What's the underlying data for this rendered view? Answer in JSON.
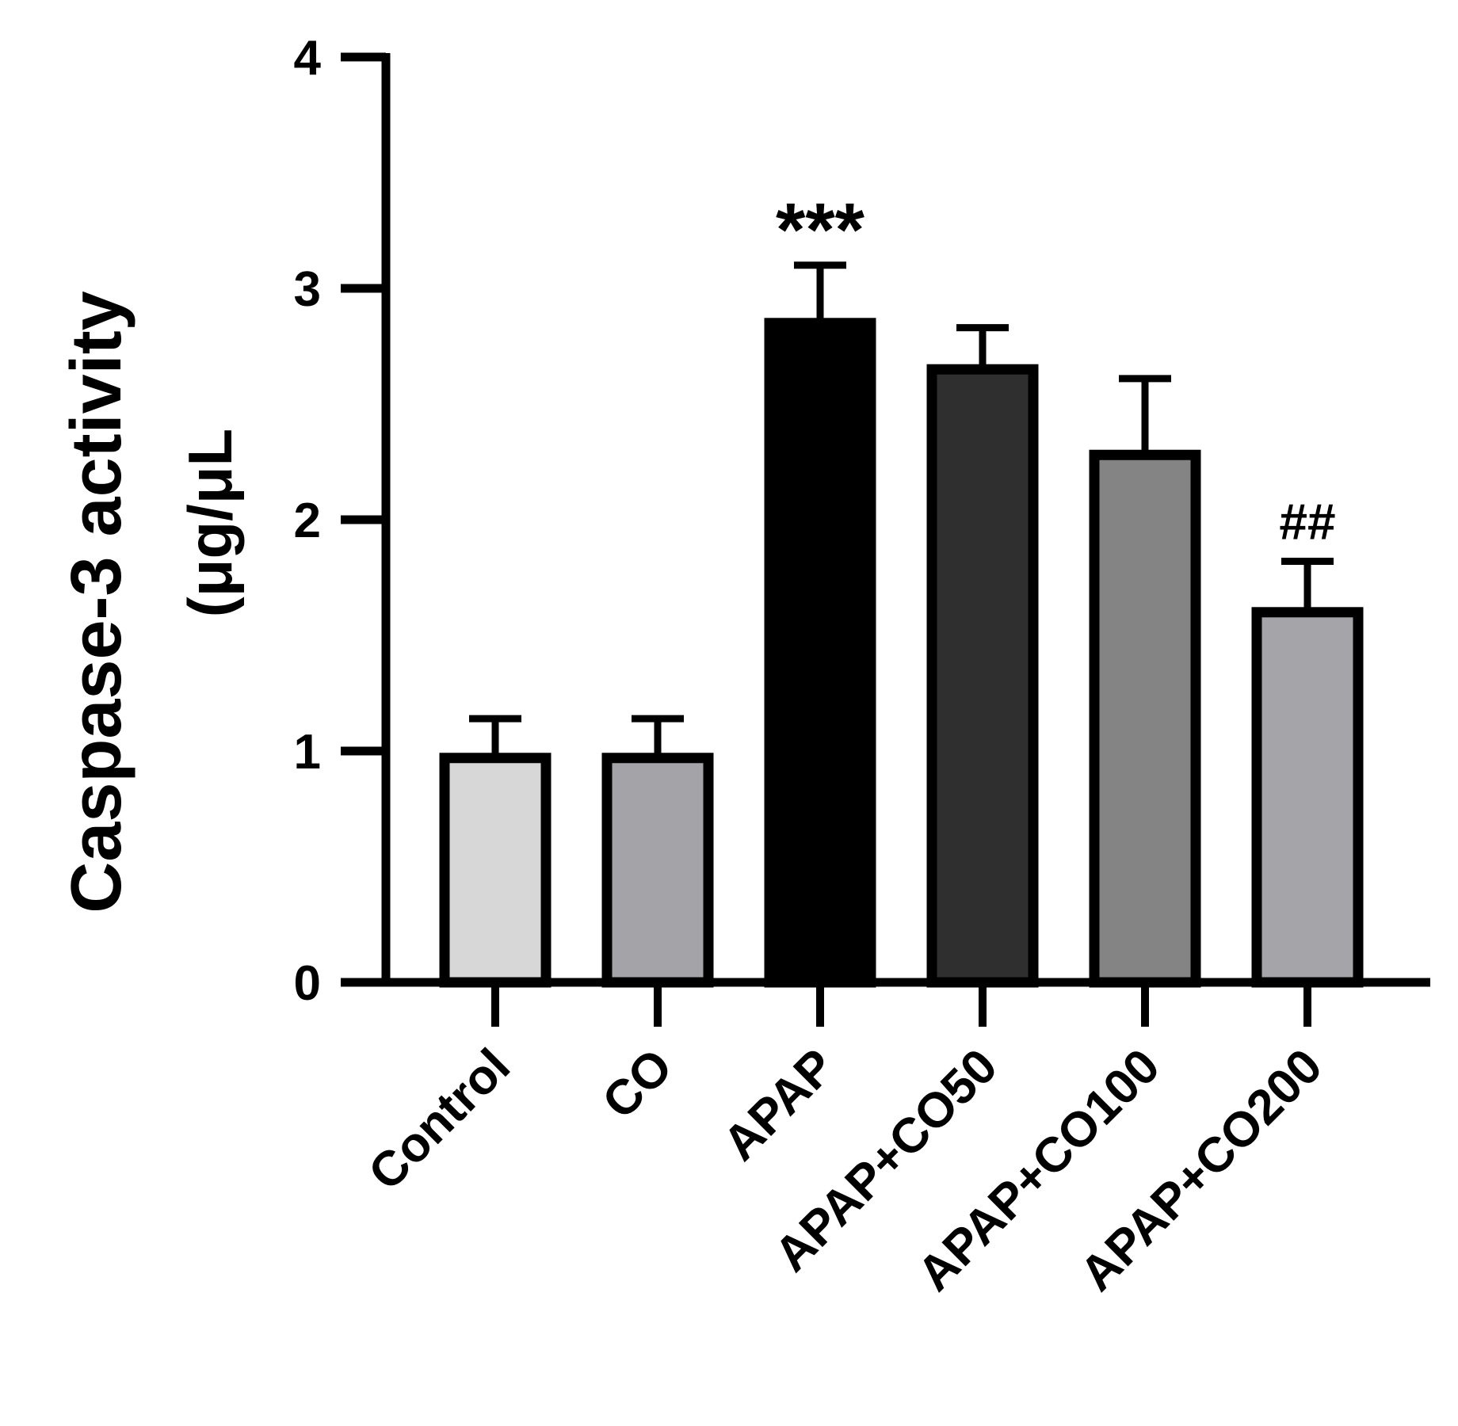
{
  "chart_data": {
    "type": "bar",
    "title": "",
    "ylabel": "Caspase-3 activity",
    "ylabel_unit": "(μg/μL",
    "xlabel": "",
    "ylim": [
      0,
      4
    ],
    "yticks": [
      0,
      1,
      2,
      3,
      4
    ],
    "grid": false,
    "legend": "none",
    "categories": [
      "Control",
      "CO",
      "APAP",
      "APAP+CO50",
      "APAP+CO100",
      "APAP+CO200"
    ],
    "values": [
      0.97,
      0.97,
      2.85,
      2.65,
      2.28,
      1.6
    ],
    "errors": [
      0.17,
      0.17,
      0.25,
      0.18,
      0.33,
      0.22
    ],
    "colors": [
      "#d7d7d7",
      "#a4a4a8",
      "#000000",
      "#2f2f2f",
      "#848484",
      "#a5a5a9"
    ],
    "annotations": [
      "",
      "",
      "***",
      "",
      "",
      "##"
    ]
  }
}
